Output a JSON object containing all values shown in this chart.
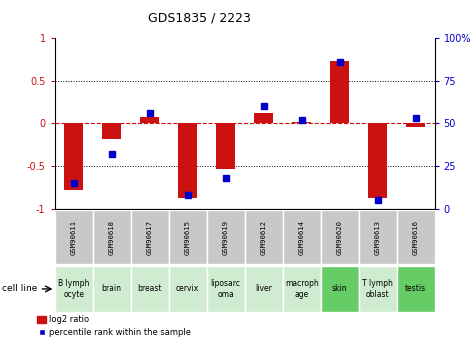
{
  "title": "GDS1835 / 2223",
  "gsm_labels": [
    "GSM90611",
    "GSM90618",
    "GSM90617",
    "GSM90615",
    "GSM90619",
    "GSM90612",
    "GSM90614",
    "GSM90620",
    "GSM90613",
    "GSM90616"
  ],
  "cell_labels": [
    "B lymph\nocyte",
    "brain",
    "breast",
    "cervix",
    "liposarc\noma",
    "liver",
    "macroph\nage",
    "skin",
    "T lymph\noblast",
    "testis"
  ],
  "cell_colors": [
    "#d0ecd0",
    "#d0ecd0",
    "#d0ecd0",
    "#d0ecd0",
    "#d0ecd0",
    "#d0ecd0",
    "#d0ecd0",
    "#66cc66",
    "#d0ecd0",
    "#66cc66"
  ],
  "log2_ratio": [
    -0.78,
    -0.18,
    0.08,
    -0.87,
    -0.53,
    0.12,
    0.02,
    0.73,
    -0.87,
    -0.04
  ],
  "percentile_rank": [
    15,
    32,
    56,
    8,
    18,
    60,
    52,
    86,
    5,
    53
  ],
  "ylim_left": [
    -1,
    1
  ],
  "ylim_right": [
    0,
    100
  ],
  "bar_color": "#cc1111",
  "dot_color": "#0000cc",
  "bg_color": "#ffffff",
  "zero_line_color": "#cc1111",
  "legend_label1": "log2 ratio",
  "legend_label2": "percentile rank within the sample",
  "cell_line_label": "cell line",
  "left_yticks": [
    -1,
    -0.5,
    0,
    0.5,
    1
  ],
  "left_yticklabels": [
    "-1",
    "-0.5",
    "0",
    "0.5",
    "1"
  ],
  "right_yticks": [
    0,
    25,
    50,
    75,
    100
  ],
  "right_yticklabels": [
    "0",
    "25",
    "50",
    "75",
    "100%"
  ]
}
